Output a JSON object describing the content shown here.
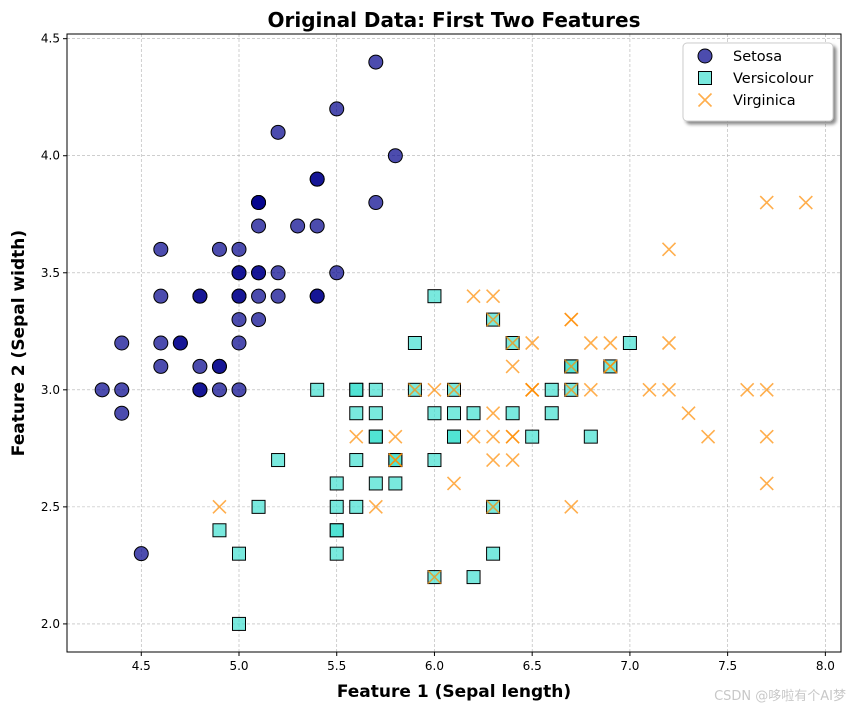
{
  "chart_data": {
    "type": "scatter",
    "title": "Original Data: First Two Features",
    "xlabel": "Feature 1 (Sepal length)",
    "ylabel": "Feature 2 (Sepal width)",
    "xlim": [
      4.12,
      8.08
    ],
    "ylim": [
      1.88,
      4.52
    ],
    "xticks": [
      "4.5",
      "5.0",
      "5.5",
      "6.0",
      "6.5",
      "7.0",
      "7.5",
      "8.0"
    ],
    "yticks": [
      "2.0",
      "2.5",
      "3.0",
      "3.5",
      "4.0",
      "4.5"
    ],
    "grid": true,
    "legend_position": "top-right",
    "series": [
      {
        "name": "Setosa",
        "marker": "circle",
        "color": "#00008b",
        "edge": "#000000",
        "x": [
          5.1,
          4.9,
          4.7,
          4.6,
          5.0,
          5.4,
          4.6,
          5.0,
          4.4,
          4.9,
          5.4,
          4.8,
          4.8,
          4.3,
          5.8,
          5.7,
          5.4,
          5.1,
          5.7,
          5.1,
          5.4,
          5.1,
          4.6,
          5.1,
          4.8,
          5.0,
          5.0,
          5.2,
          5.2,
          4.7,
          4.8,
          5.4,
          5.2,
          5.5,
          4.9,
          5.0,
          5.5,
          4.9,
          4.4,
          5.1,
          5.0,
          4.5,
          4.4,
          5.0,
          5.1,
          4.8,
          5.1,
          4.6,
          5.3,
          5.0
        ],
        "y": [
          3.5,
          3.0,
          3.2,
          3.1,
          3.6,
          3.9,
          3.4,
          3.4,
          2.9,
          3.1,
          3.7,
          3.4,
          3.0,
          3.0,
          4.0,
          4.4,
          3.9,
          3.5,
          3.8,
          3.8,
          3.4,
          3.7,
          3.6,
          3.3,
          3.4,
          3.0,
          3.4,
          3.5,
          3.4,
          3.2,
          3.1,
          3.4,
          4.1,
          4.2,
          3.1,
          3.2,
          3.5,
          3.6,
          3.0,
          3.4,
          3.5,
          2.3,
          3.2,
          3.5,
          3.8,
          3.0,
          3.8,
          3.2,
          3.7,
          3.3
        ]
      },
      {
        "name": "Versicolour",
        "marker": "square",
        "color": "#40e0d0",
        "edge": "#000000",
        "x": [
          7.0,
          6.4,
          6.9,
          5.5,
          6.5,
          5.7,
          6.3,
          4.9,
          6.6,
          5.2,
          5.0,
          5.9,
          6.0,
          6.1,
          5.6,
          6.7,
          5.6,
          5.8,
          6.2,
          5.6,
          5.9,
          6.1,
          6.3,
          6.1,
          6.4,
          6.6,
          6.8,
          6.7,
          6.0,
          5.7,
          5.5,
          5.5,
          5.8,
          6.0,
          5.4,
          6.0,
          6.7,
          6.3,
          5.6,
          5.5,
          5.5,
          6.1,
          5.8,
          5.0,
          5.6,
          5.7,
          5.7,
          6.2,
          5.1,
          5.7
        ],
        "y": [
          3.2,
          3.2,
          3.1,
          2.3,
          2.8,
          2.8,
          3.3,
          2.4,
          2.9,
          2.7,
          2.0,
          3.0,
          2.2,
          2.9,
          2.9,
          3.1,
          3.0,
          2.7,
          2.2,
          2.5,
          3.2,
          2.8,
          2.5,
          2.8,
          2.9,
          3.0,
          2.8,
          3.0,
          2.9,
          2.6,
          2.4,
          2.4,
          2.7,
          2.7,
          3.0,
          3.4,
          3.1,
          2.3,
          3.0,
          2.5,
          2.6,
          3.0,
          2.6,
          2.3,
          2.7,
          3.0,
          2.9,
          2.9,
          2.5,
          2.8
        ]
      },
      {
        "name": "Virginica",
        "marker": "x",
        "color": "#ff8c00",
        "x": [
          6.3,
          5.8,
          7.1,
          6.3,
          6.5,
          7.6,
          4.9,
          7.3,
          6.7,
          7.2,
          6.5,
          6.4,
          6.8,
          5.7,
          5.8,
          6.4,
          6.5,
          7.7,
          7.7,
          6.0,
          6.9,
          5.6,
          7.7,
          6.3,
          6.7,
          7.2,
          6.2,
          6.1,
          6.4,
          7.2,
          7.4,
          7.9,
          6.4,
          6.3,
          6.1,
          7.7,
          6.3,
          6.4,
          6.0,
          6.9,
          6.7,
          6.9,
          5.8,
          6.8,
          6.7,
          6.7,
          6.3,
          6.5,
          6.2,
          5.9
        ],
        "y": [
          3.3,
          2.7,
          3.0,
          2.9,
          3.0,
          3.0,
          2.5,
          2.9,
          2.5,
          3.6,
          3.2,
          2.7,
          3.0,
          2.5,
          2.8,
          3.2,
          3.0,
          3.8,
          2.6,
          2.2,
          3.2,
          2.8,
          2.8,
          2.7,
          3.3,
          3.2,
          2.8,
          3.0,
          2.8,
          3.0,
          2.8,
          3.8,
          2.8,
          2.8,
          2.6,
          3.0,
          3.4,
          3.1,
          3.0,
          3.1,
          3.1,
          3.1,
          2.7,
          3.2,
          3.3,
          3.0,
          2.5,
          3.0,
          3.4,
          3.0
        ]
      }
    ]
  },
  "watermark": "CSDN @哆啦有个AI梦"
}
